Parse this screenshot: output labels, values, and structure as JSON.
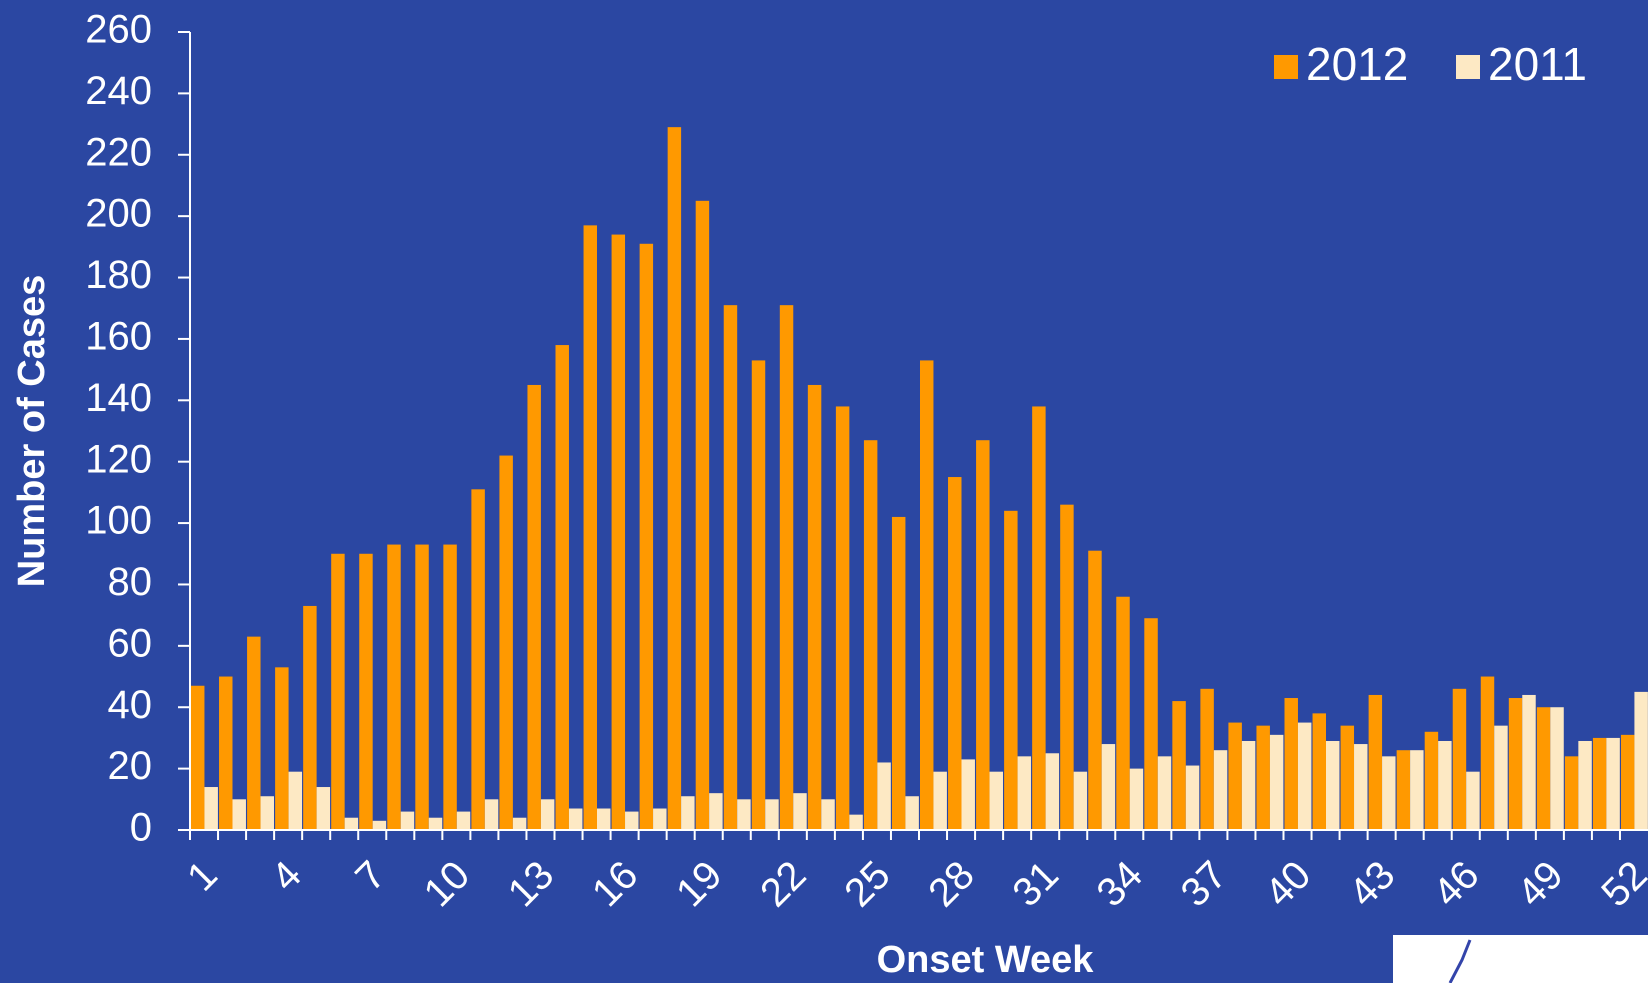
{
  "chart_data": {
    "type": "bar",
    "x_label": "Onset Week",
    "y_label": "Number of Cases",
    "categories": [
      "1",
      null,
      null,
      "4",
      null,
      null,
      "7",
      null,
      null,
      "10",
      null,
      null,
      "13",
      null,
      null,
      "16",
      null,
      null,
      "19",
      null,
      null,
      "22",
      null,
      null,
      "25",
      null,
      null,
      "28",
      null,
      null,
      "31",
      null,
      null,
      "34",
      null,
      null,
      "37",
      null,
      null,
      "40",
      null,
      null,
      "43",
      null,
      null,
      "46",
      null,
      null,
      "49",
      null,
      null,
      "52"
    ],
    "series": [
      {
        "name": "2012",
        "color": "#ff9900",
        "values": [
          47,
          50,
          63,
          53,
          73,
          90,
          90,
          93,
          93,
          93,
          111,
          122,
          145,
          158,
          197,
          194,
          191,
          229,
          205,
          171,
          153,
          171,
          145,
          138,
          127,
          102,
          153,
          115,
          127,
          104,
          138,
          106,
          91,
          76,
          69,
          42,
          46,
          35,
          34,
          43,
          38,
          34,
          44,
          26,
          32,
          46,
          50,
          43,
          40,
          24,
          30,
          31
        ]
      },
      {
        "name": "2011",
        "color": "#fde9c4",
        "values": [
          14,
          10,
          11,
          19,
          14,
          4,
          3,
          6,
          4,
          6,
          10,
          4,
          10,
          7,
          7,
          6,
          7,
          11,
          12,
          10,
          10,
          12,
          10,
          5,
          22,
          11,
          19,
          23,
          19,
          24,
          25,
          19,
          28,
          20,
          24,
          21,
          26,
          29,
          31,
          35,
          29,
          28,
          24,
          26,
          29,
          19,
          34,
          44,
          40,
          29,
          30,
          45
        ]
      }
    ],
    "ylim": [
      0,
      260
    ],
    "yticks": [
      0,
      20,
      40,
      60,
      80,
      100,
      120,
      140,
      160,
      180,
      200,
      220,
      240,
      260
    ],
    "legend": "top-right"
  }
}
